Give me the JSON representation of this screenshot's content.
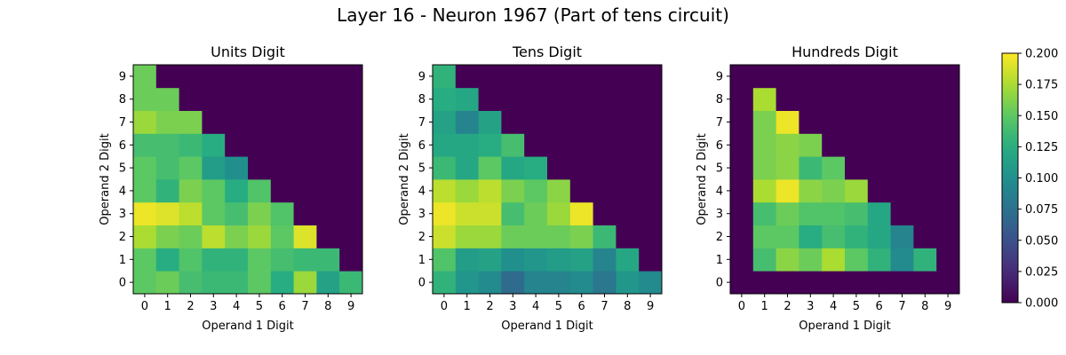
{
  "figure": {
    "title": "Layer 16 - Neuron 1967 (Part of tens circuit)"
  },
  "chart_data": [
    {
      "type": "heatmap",
      "title": "Units Digit",
      "xlabel": "Operand 1 Digit",
      "ylabel": "Operand 2 Digit",
      "x": [
        0,
        1,
        2,
        3,
        4,
        5,
        6,
        7,
        8,
        9
      ],
      "y": [
        0,
        1,
        2,
        3,
        4,
        5,
        6,
        7,
        8,
        9
      ],
      "vmin": 0,
      "vmax": 0.2,
      "values": [
        [
          0.15,
          0.155,
          0.14,
          0.135,
          0.135,
          0.15,
          0.125,
          0.17,
          0.115,
          0.135
        ],
        [
          0.15,
          0.125,
          0.145,
          0.13,
          0.13,
          0.15,
          0.14,
          0.135,
          0.135,
          0.0
        ],
        [
          0.175,
          0.16,
          0.155,
          0.18,
          0.16,
          0.17,
          0.15,
          0.19,
          0.0,
          0.0
        ],
        [
          0.195,
          0.19,
          0.18,
          0.15,
          0.14,
          0.16,
          0.145,
          0.0,
          0.0,
          0.0
        ],
        [
          0.15,
          0.13,
          0.16,
          0.15,
          0.125,
          0.145,
          0.0,
          0.0,
          0.0,
          0.0
        ],
        [
          0.15,
          0.14,
          0.15,
          0.11,
          0.1,
          0.0,
          0.0,
          0.0,
          0.0,
          0.0
        ],
        [
          0.14,
          0.14,
          0.135,
          0.125,
          0.0,
          0.0,
          0.0,
          0.0,
          0.0,
          0.0
        ],
        [
          0.17,
          0.16,
          0.16,
          0.0,
          0.0,
          0.0,
          0.0,
          0.0,
          0.0,
          0.0
        ],
        [
          0.155,
          0.155,
          0.0,
          0.0,
          0.0,
          0.0,
          0.0,
          0.0,
          0.0,
          0.0
        ],
        [
          0.155,
          0.0,
          0.0,
          0.0,
          0.0,
          0.0,
          0.0,
          0.0,
          0.0,
          0.0
        ]
      ]
    },
    {
      "type": "heatmap",
      "title": "Tens Digit",
      "xlabel": "Operand 1 Digit",
      "ylabel": "Operand 2 Digit",
      "x": [
        0,
        1,
        2,
        3,
        4,
        5,
        6,
        7,
        8,
        9
      ],
      "y": [
        0,
        1,
        2,
        3,
        4,
        5,
        6,
        7,
        8,
        9
      ],
      "vmin": 0,
      "vmax": 0.2,
      "values": [
        [
          0.13,
          0.105,
          0.095,
          0.07,
          0.09,
          0.09,
          0.095,
          0.08,
          0.105,
          0.095
        ],
        [
          0.145,
          0.11,
          0.115,
          0.1,
          0.105,
          0.11,
          0.115,
          0.09,
          0.12,
          0.0
        ],
        [
          0.185,
          0.17,
          0.17,
          0.155,
          0.155,
          0.155,
          0.16,
          0.135,
          0.0,
          0.0
        ],
        [
          0.195,
          0.185,
          0.185,
          0.14,
          0.155,
          0.17,
          0.195,
          0.0,
          0.0,
          0.0
        ],
        [
          0.18,
          0.17,
          0.18,
          0.16,
          0.15,
          0.165,
          0.0,
          0.0,
          0.0,
          0.0
        ],
        [
          0.135,
          0.12,
          0.15,
          0.12,
          0.125,
          0.0,
          0.0,
          0.0,
          0.0,
          0.0
        ],
        [
          0.12,
          0.12,
          0.125,
          0.14,
          0.0,
          0.0,
          0.0,
          0.0,
          0.0,
          0.0
        ],
        [
          0.115,
          0.09,
          0.115,
          0.0,
          0.0,
          0.0,
          0.0,
          0.0,
          0.0,
          0.0
        ],
        [
          0.125,
          0.12,
          0.0,
          0.0,
          0.0,
          0.0,
          0.0,
          0.0,
          0.0,
          0.0
        ],
        [
          0.13,
          0.0,
          0.0,
          0.0,
          0.0,
          0.0,
          0.0,
          0.0,
          0.0,
          0.0
        ]
      ]
    },
    {
      "type": "heatmap",
      "title": "Hundreds Digit",
      "xlabel": "Operand 1 Digit",
      "ylabel": "Operand 2 Digit",
      "x": [
        0,
        1,
        2,
        3,
        4,
        5,
        6,
        7,
        8,
        9
      ],
      "y": [
        0,
        1,
        2,
        3,
        4,
        5,
        6,
        7,
        8,
        9
      ],
      "vmin": 0,
      "vmax": 0.2,
      "values": [
        [
          0.0,
          0.0,
          0.0,
          0.0,
          0.0,
          0.0,
          0.0,
          0.0,
          0.0,
          0.0
        ],
        [
          0.0,
          0.14,
          0.165,
          0.155,
          0.175,
          0.15,
          0.13,
          0.095,
          0.13,
          0.0
        ],
        [
          0.0,
          0.15,
          0.15,
          0.125,
          0.14,
          0.13,
          0.12,
          0.09,
          0.0,
          0.0
        ],
        [
          0.0,
          0.14,
          0.155,
          0.145,
          0.145,
          0.14,
          0.12,
          0.0,
          0.0,
          0.0
        ],
        [
          0.0,
          0.175,
          0.195,
          0.165,
          0.16,
          0.17,
          0.0,
          0.0,
          0.0,
          0.0
        ],
        [
          0.0,
          0.16,
          0.165,
          0.135,
          0.15,
          0.0,
          0.0,
          0.0,
          0.0,
          0.0
        ],
        [
          0.0,
          0.16,
          0.165,
          0.16,
          0.0,
          0.0,
          0.0,
          0.0,
          0.0,
          0.0
        ],
        [
          0.0,
          0.16,
          0.195,
          0.0,
          0.0,
          0.0,
          0.0,
          0.0,
          0.0,
          0.0
        ],
        [
          0.0,
          0.175,
          0.0,
          0.0,
          0.0,
          0.0,
          0.0,
          0.0,
          0.0,
          0.0
        ],
        [
          0.0,
          0.0,
          0.0,
          0.0,
          0.0,
          0.0,
          0.0,
          0.0,
          0.0,
          0.0
        ]
      ]
    }
  ],
  "colorbar": {
    "colormap": "viridis",
    "min": 0,
    "max": 0.2,
    "ticks": [
      "0.000",
      "0.025",
      "0.050",
      "0.075",
      "0.100",
      "0.125",
      "0.150",
      "0.175",
      "0.200"
    ]
  }
}
